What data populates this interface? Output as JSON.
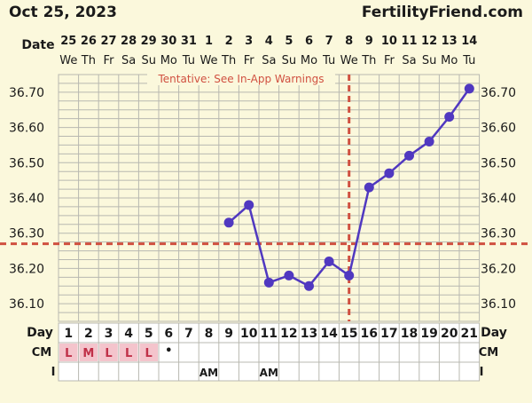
{
  "header": {
    "date": "Oct 25, 2023",
    "brand": "FertilityFriend.com"
  },
  "row_labels": {
    "date": "Date",
    "day": "Day",
    "cm": "CM",
    "i": "I"
  },
  "warning": "Tentative: See In-App Warnings",
  "colors": {
    "background": "#fbf8dc",
    "grid": "#b8b8b0",
    "line": "#5038c0",
    "coverline": "#d05040",
    "cm_cell": "#f4c4cc",
    "cm_text": "#c03048"
  },
  "chart_data": {
    "type": "line",
    "title": "",
    "ylim": [
      36.05,
      36.75
    ],
    "y_ticks": [
      "36.10",
      "36.20",
      "36.30",
      "36.40",
      "36.50",
      "36.60",
      "36.70"
    ],
    "dates": [
      "25",
      "26",
      "27",
      "28",
      "29",
      "30",
      "31",
      "1",
      "2",
      "3",
      "4",
      "5",
      "6",
      "7",
      "8",
      "9",
      "10",
      "11",
      "12",
      "13",
      "14"
    ],
    "weekdays": [
      "We",
      "Th",
      "Fr",
      "Sa",
      "Su",
      "Mo",
      "Tu",
      "We",
      "Th",
      "Fr",
      "Sa",
      "Su",
      "Mo",
      "Tu",
      "We",
      "Th",
      "Fr",
      "Sa",
      "Su",
      "Mo",
      "Tu"
    ],
    "cycle_days": [
      "1",
      "2",
      "3",
      "4",
      "5",
      "6",
      "7",
      "8",
      "9",
      "10",
      "11",
      "12",
      "13",
      "14",
      "15",
      "16",
      "17",
      "18",
      "19",
      "20",
      "21"
    ],
    "series": [
      {
        "values": [
          null,
          null,
          null,
          null,
          null,
          null,
          null,
          null,
          36.33,
          36.38,
          36.16,
          36.18,
          36.15,
          36.22,
          36.18,
          36.43,
          36.47,
          36.52,
          36.56,
          36.63,
          36.71
        ]
      }
    ],
    "coverline": 36.27,
    "ovulation_day": "15",
    "cervical_mucus": [
      "L",
      "M",
      "L",
      "L",
      "L",
      "•",
      "",
      "",
      "",
      "",
      "",
      "",
      "",
      "",
      "",
      "",
      "",
      "",
      "",
      "",
      ""
    ],
    "intercourse": [
      "",
      "",
      "",
      "",
      "",
      "",
      "",
      "AM",
      "",
      "",
      "AM",
      "",
      "",
      "",
      "",
      "",
      "",
      "",
      "",
      "",
      ""
    ]
  }
}
